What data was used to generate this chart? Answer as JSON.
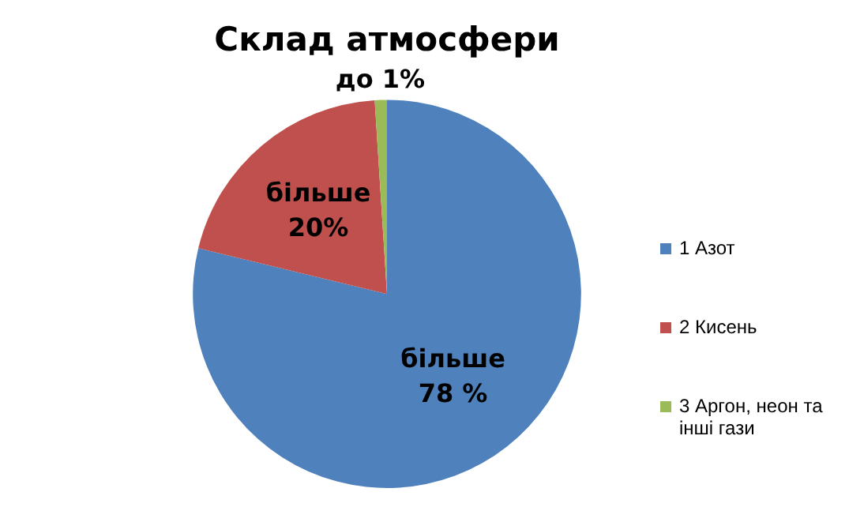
{
  "chart_data": {
    "type": "pie",
    "title": "Склад атмосфери",
    "categories": [
      "1 Азот",
      "2 Кисень",
      "3 Аргон, неон та інші гази"
    ],
    "values": [
      78,
      20,
      1
    ],
    "colors": [
      "#4f81bd",
      "#c0504d",
      "#9bbb59"
    ],
    "value_labels": [
      "більше 78 %",
      "більше 20%",
      "до 1%"
    ],
    "legend": "right"
  }
}
